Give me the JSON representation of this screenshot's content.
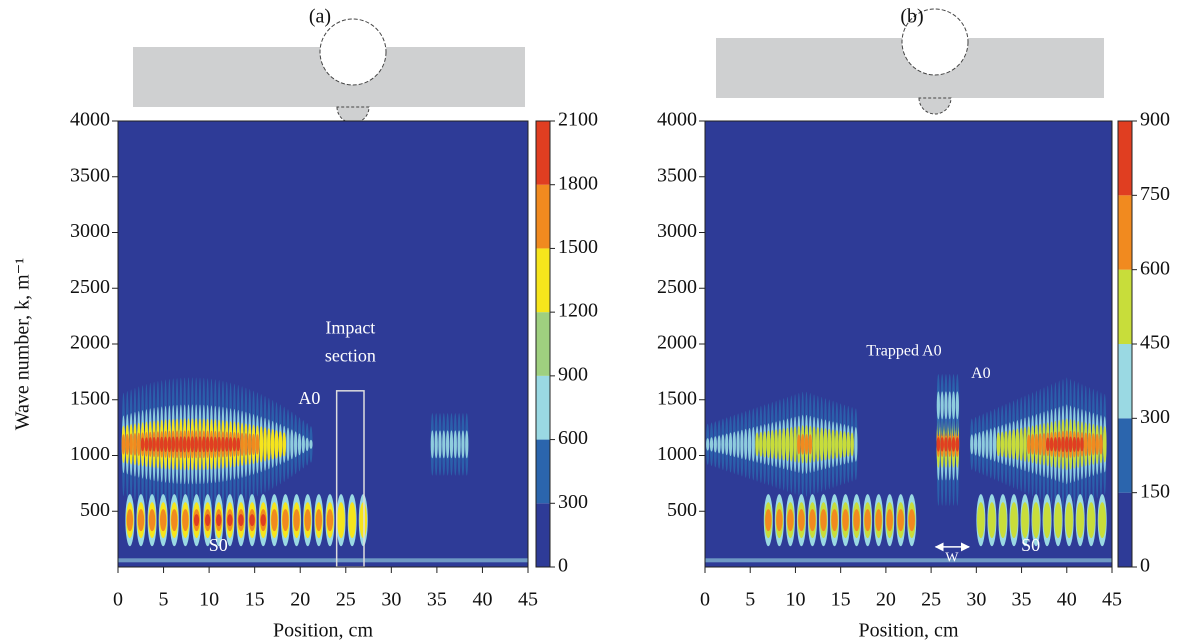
{
  "chart_data": [
    {
      "type": "heatmap",
      "title": "(a)",
      "xlabel": "Position, cm",
      "ylabel": "Wave number, k, m⁻¹",
      "xlim": [
        0,
        45
      ],
      "xticks": [
        0,
        5,
        10,
        15,
        20,
        25,
        30,
        35,
        40,
        45
      ],
      "ylim": [
        0,
        4000
      ],
      "yticks": [
        500,
        1000,
        1500,
        2000,
        2500,
        3000,
        3500,
        4000
      ],
      "colorbar_levels": [
        0,
        300,
        600,
        900,
        1200,
        1500,
        1800,
        2100
      ],
      "colors": [
        "#2e3b97",
        "#2b65ad",
        "#9ad9e3",
        "#9fd07f",
        "#f6e51c",
        "#f18a1f",
        "#e03e21"
      ],
      "annotations": [
        "Impact",
        "section",
        "A0",
        "S0"
      ]
    },
    {
      "type": "heatmap",
      "title": "(b)",
      "xlabel": "Position, cm",
      "xlim": [
        0,
        45
      ],
      "xticks": [
        0,
        5,
        10,
        15,
        20,
        25,
        30,
        35,
        40,
        45
      ],
      "ylim": [
        0,
        4000
      ],
      "yticks": [
        500,
        1000,
        1500,
        2000,
        2500,
        3000,
        3500,
        4000
      ],
      "colorbar_levels": [
        0,
        150,
        300,
        450,
        600,
        750,
        900
      ],
      "colors": [
        "#2e3b97",
        "#2b65ad",
        "#9ad9e3",
        "#c8dd3a",
        "#f18a1f",
        "#e03e21"
      ],
      "annotations": [
        "Trapped A0",
        "A0",
        "S0",
        "W"
      ]
    }
  ]
}
